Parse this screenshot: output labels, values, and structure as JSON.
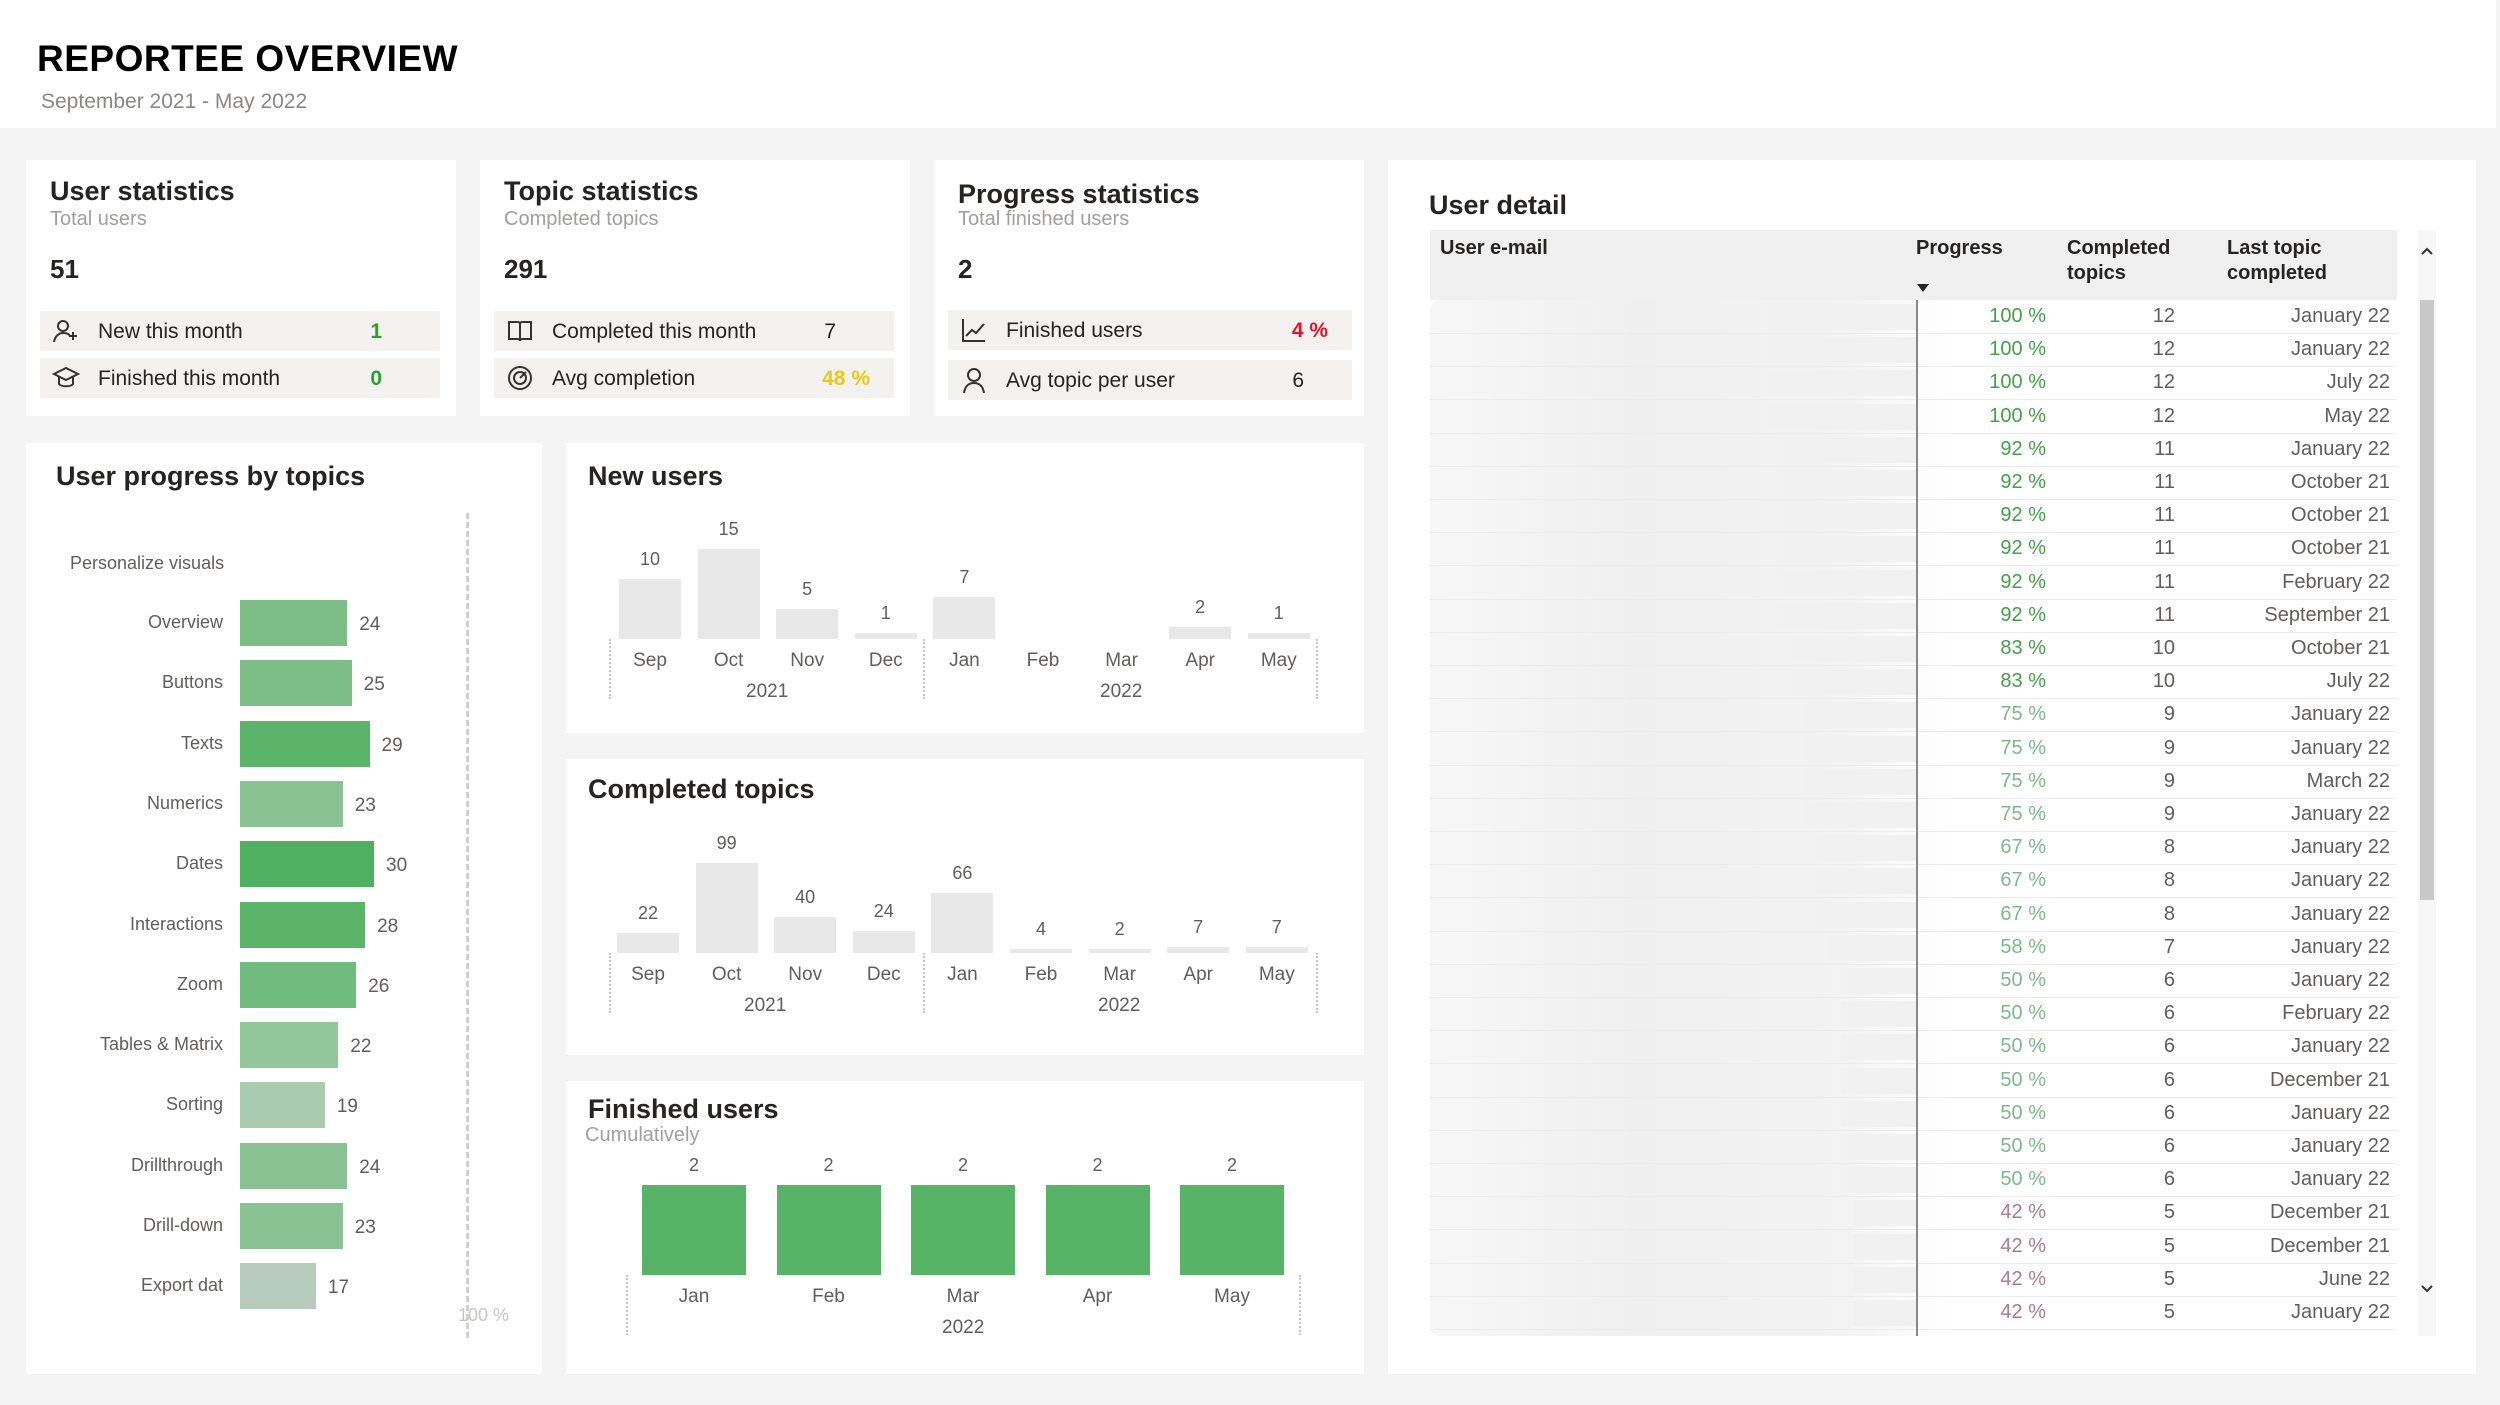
{
  "header": {
    "title": "REPORTEE OVERVIEW",
    "subtitle": "September 2021 - May 2022"
  },
  "user_stats": {
    "title": "User statistics",
    "subtitle": "Total users",
    "value": "51",
    "rows": [
      {
        "icon": "add-user-icon",
        "label": "New this month",
        "value": "1",
        "color": "#2ca02c"
      },
      {
        "icon": "graduation-cap-icon",
        "label": "Finished this month",
        "value": "0",
        "color": "#2ca02c"
      }
    ]
  },
  "topic_stats": {
    "title": "Topic statistics",
    "subtitle": "Completed topics",
    "value": "291",
    "rows": [
      {
        "icon": "book-icon",
        "label": "Completed this month",
        "value": "7",
        "color": "#252423"
      },
      {
        "icon": "gauge-icon",
        "label": "Avg completion",
        "value": "48 %",
        "color": "#f2c80f"
      }
    ]
  },
  "progress_stats": {
    "title": "Progress statistics",
    "subtitle": "Total finished users",
    "value": "2",
    "rows": [
      {
        "icon": "trend-up-icon",
        "label": "Finished users",
        "value": "4 %",
        "color": "#e81123"
      },
      {
        "icon": "person-icon",
        "label": "Avg topic per user",
        "value": "6",
        "color": "#252423"
      }
    ]
  },
  "user_progress": {
    "title": "User progress by topics",
    "first_label": "Personalize visuals",
    "axis_label": "100 %",
    "chart_data": {
      "type": "bar",
      "orientation": "horizontal",
      "categories": [
        "Overview",
        "Buttons",
        "Texts",
        "Numerics",
        "Dates",
        "Interactions",
        "Zoom",
        "Tables & Matrix",
        "Sorting",
        "Drillthrough",
        "Drill-down",
        "Export dat"
      ],
      "values": [
        24,
        25,
        29,
        23,
        30,
        28,
        26,
        22,
        19,
        24,
        23,
        17
      ],
      "colors": [
        "#7dbe88",
        "#7dbe88",
        "#5cb46a",
        "#8ac293",
        "#4fb061",
        "#5cb46a",
        "#72bb7e",
        "#93c79b",
        "#a9cbb0",
        "#8ac293",
        "#8ac293",
        "#b8ccbd"
      ]
    }
  },
  "new_users": {
    "title": "New users",
    "year_labels": [
      "2021",
      "2022"
    ],
    "chart_data": {
      "type": "bar",
      "categories": [
        "Sep",
        "Oct",
        "Nov",
        "Dec",
        "Jan",
        "Feb",
        "Mar",
        "Apr",
        "May"
      ],
      "values": [
        10,
        15,
        5,
        1,
        7,
        null,
        null,
        2,
        1
      ],
      "value_labels": [
        "10",
        "15",
        "5",
        "1",
        "7",
        "",
        "",
        "2",
        "1"
      ],
      "color": "#e8e8e8"
    }
  },
  "completed_topics": {
    "title": "Completed topics",
    "year_labels": [
      "2021",
      "2022"
    ],
    "chart_data": {
      "type": "bar",
      "categories": [
        "Sep",
        "Oct",
        "Nov",
        "Dec",
        "Jan",
        "Feb",
        "Mar",
        "Apr",
        "May"
      ],
      "values": [
        22,
        99,
        40,
        24,
        66,
        4,
        2,
        7,
        7
      ],
      "value_labels": [
        "22",
        "99",
        "40",
        "24",
        "66",
        "4",
        "2",
        "7",
        "7"
      ],
      "color": "#e8e8e8"
    }
  },
  "finished_users": {
    "title": "Finished users",
    "subtitle": "Cumulatively",
    "year_label": "2022",
    "chart_data": {
      "type": "bar",
      "categories": [
        "Jan",
        "Feb",
        "Mar",
        "Apr",
        "May"
      ],
      "values": [
        2,
        2,
        2,
        2,
        2
      ],
      "value_labels": [
        "2",
        "2",
        "2",
        "2",
        "2"
      ],
      "color": "#57b466"
    }
  },
  "user_detail": {
    "title": "User detail",
    "columns": {
      "email": "User e-mail",
      "progress": "Progress",
      "completed_1": "Completed",
      "completed_2": "topics",
      "last_1": "Last topic",
      "last_2": "completed"
    },
    "rows": [
      {
        "pct": "100 %",
        "value": 100,
        "count": "12",
        "last": "January 22"
      },
      {
        "pct": "100 %",
        "value": 100,
        "count": "12",
        "last": "January 22"
      },
      {
        "pct": "100 %",
        "value": 100,
        "count": "12",
        "last": "July 22"
      },
      {
        "pct": "100 %",
        "value": 100,
        "count": "12",
        "last": "May 22"
      },
      {
        "pct": "92 %",
        "value": 92,
        "count": "11",
        "last": "January 22"
      },
      {
        "pct": "92 %",
        "value": 92,
        "count": "11",
        "last": "October 21"
      },
      {
        "pct": "92 %",
        "value": 92,
        "count": "11",
        "last": "October 21"
      },
      {
        "pct": "92 %",
        "value": 92,
        "count": "11",
        "last": "October 21"
      },
      {
        "pct": "92 %",
        "value": 92,
        "count": "11",
        "last": "February 22"
      },
      {
        "pct": "92 %",
        "value": 92,
        "count": "11",
        "last": "September 21"
      },
      {
        "pct": "83 %",
        "value": 83,
        "count": "10",
        "last": "October 21"
      },
      {
        "pct": "83 %",
        "value": 83,
        "count": "10",
        "last": "July 22"
      },
      {
        "pct": "75 %",
        "value": 75,
        "count": "9",
        "last": "January 22"
      },
      {
        "pct": "75 %",
        "value": 75,
        "count": "9",
        "last": "January 22"
      },
      {
        "pct": "75 %",
        "value": 75,
        "count": "9",
        "last": "March 22"
      },
      {
        "pct": "75 %",
        "value": 75,
        "count": "9",
        "last": "January 22"
      },
      {
        "pct": "67 %",
        "value": 67,
        "count": "8",
        "last": "January 22"
      },
      {
        "pct": "67 %",
        "value": 67,
        "count": "8",
        "last": "January 22"
      },
      {
        "pct": "67 %",
        "value": 67,
        "count": "8",
        "last": "January 22"
      },
      {
        "pct": "58 %",
        "value": 58,
        "count": "7",
        "last": "January 22"
      },
      {
        "pct": "50 %",
        "value": 50,
        "count": "6",
        "last": "January 22"
      },
      {
        "pct": "50 %",
        "value": 50,
        "count": "6",
        "last": "February 22"
      },
      {
        "pct": "50 %",
        "value": 50,
        "count": "6",
        "last": "January 22"
      },
      {
        "pct": "50 %",
        "value": 50,
        "count": "6",
        "last": "December 21"
      },
      {
        "pct": "50 %",
        "value": 50,
        "count": "6",
        "last": "January 22"
      },
      {
        "pct": "50 %",
        "value": 50,
        "count": "6",
        "last": "January 22"
      },
      {
        "pct": "50 %",
        "value": 50,
        "count": "6",
        "last": "January 22"
      },
      {
        "pct": "42 %",
        "value": 42,
        "count": "5",
        "last": "December 21"
      },
      {
        "pct": "42 %",
        "value": 42,
        "count": "5",
        "last": "December 21"
      },
      {
        "pct": "42 %",
        "value": 42,
        "count": "5",
        "last": "June 22"
      },
      {
        "pct": "42 %",
        "value": 42,
        "count": "5",
        "last": "January 22"
      }
    ],
    "colors": {
      "high": "#43a047",
      "mid": "#7cb98a",
      "low": "#b07a8a"
    }
  }
}
